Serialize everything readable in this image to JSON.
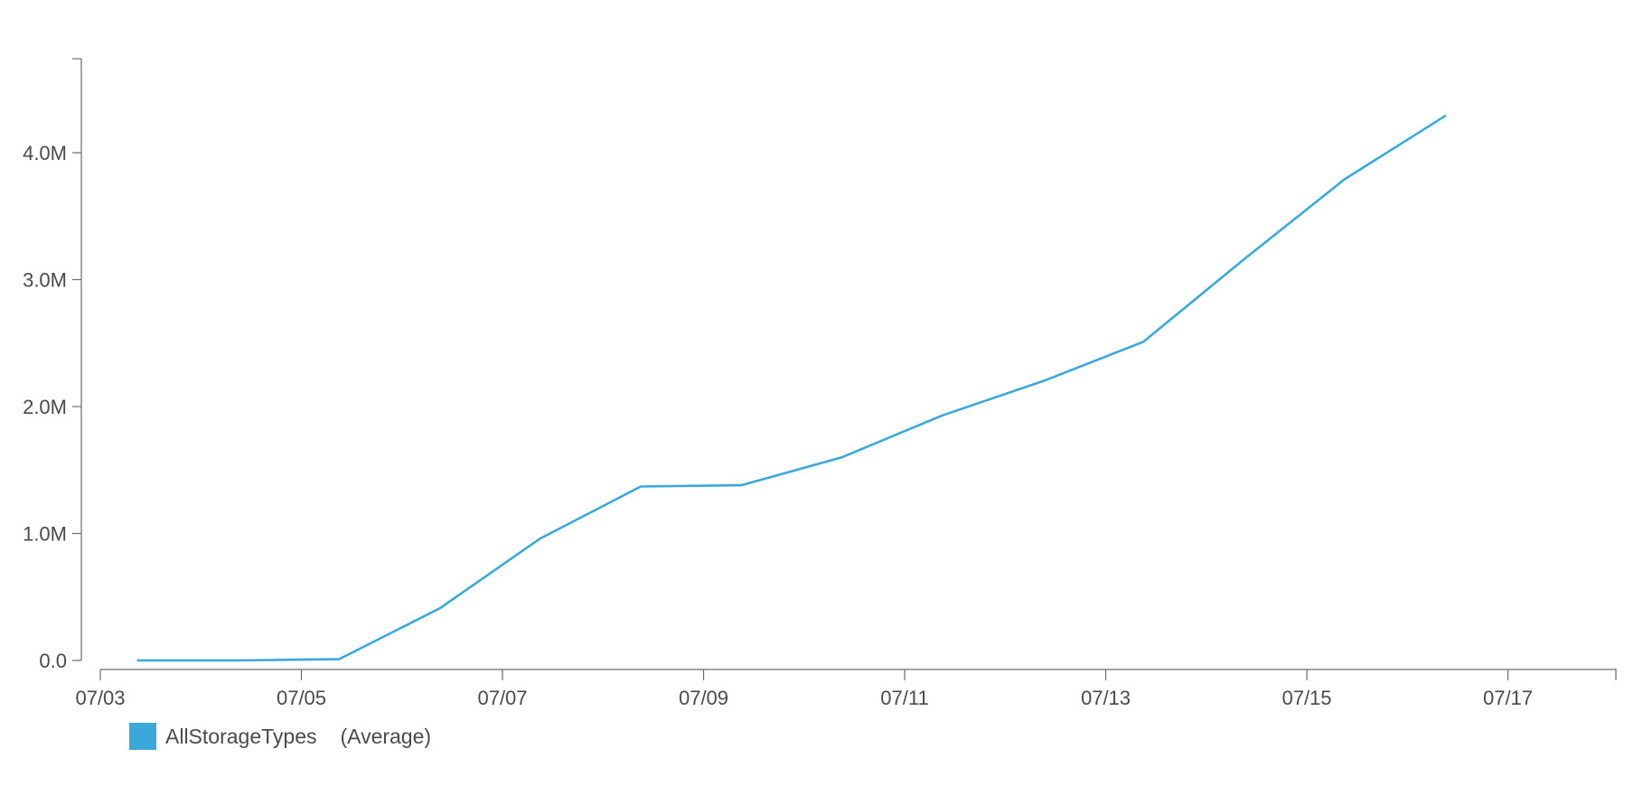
{
  "chart_data": {
    "type": "line",
    "title": "",
    "xlabel": "",
    "ylabel": "",
    "x_ticks": [
      "07/03",
      "07/05",
      "07/07",
      "07/09",
      "07/11",
      "07/13",
      "07/15",
      "07/17"
    ],
    "y_ticks": [
      "0.0",
      "1.0M",
      "2.0M",
      "3.0M",
      "4.0M"
    ],
    "ylim": [
      0,
      4700000
    ],
    "grid": false,
    "legend_position": "bottom-left",
    "series": [
      {
        "name": "AllStorageTypes",
        "aggregation": "(Average)",
        "color": "#3aa8d8",
        "points": [
          {
            "x": "07/03 09:00",
            "y": 0
          },
          {
            "x": "07/04 09:00",
            "y": 0
          },
          {
            "x": "07/05 09:00",
            "y": 10000
          },
          {
            "x": "07/06 09:00",
            "y": 410000
          },
          {
            "x": "07/07 09:00",
            "y": 960000
          },
          {
            "x": "07/08 09:00",
            "y": 1370000
          },
          {
            "x": "07/09 09:00",
            "y": 1380000
          },
          {
            "x": "07/10 09:00",
            "y": 1600000
          },
          {
            "x": "07/11 09:00",
            "y": 1930000
          },
          {
            "x": "07/12 09:00",
            "y": 2200000
          },
          {
            "x": "07/13 09:00",
            "y": 2510000
          },
          {
            "x": "07/14 09:00",
            "y": 3160000
          },
          {
            "x": "07/15 09:00",
            "y": 3790000
          },
          {
            "x": "07/16 09:00",
            "y": 4290000
          }
        ]
      }
    ]
  }
}
